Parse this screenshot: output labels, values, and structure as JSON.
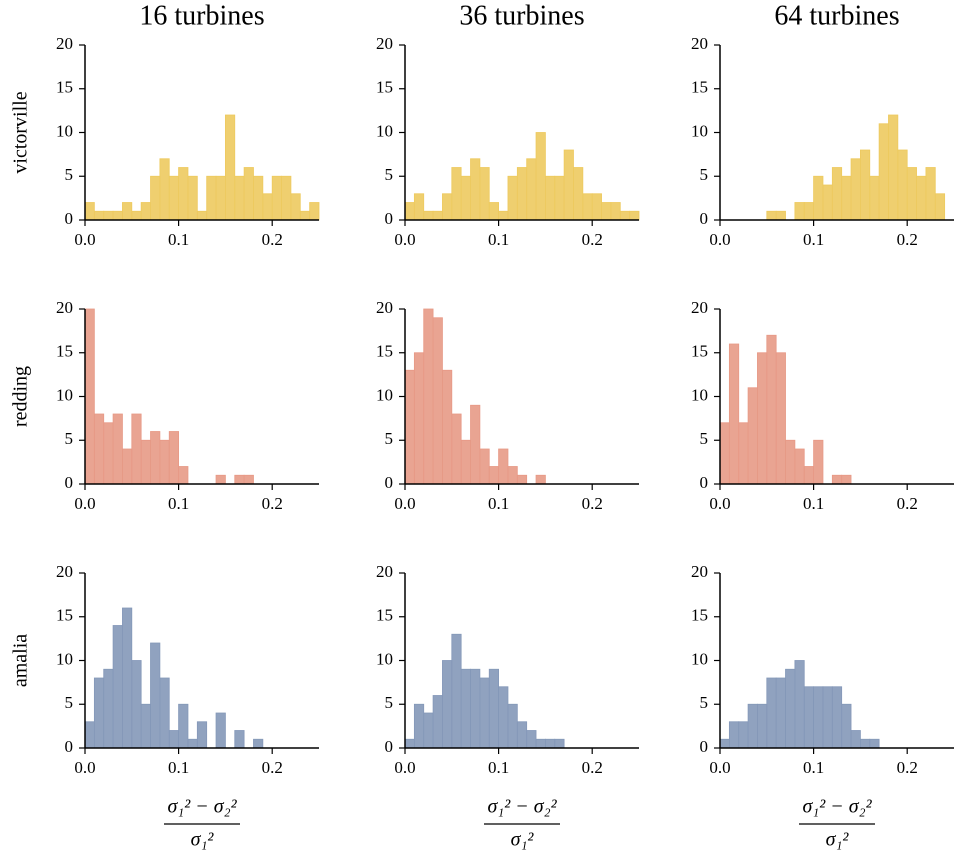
{
  "chart_data": [
    {
      "type": "histogram",
      "title": "16 turbines",
      "ylabel": "victorville",
      "color": "#ffd966",
      "bins": [
        0,
        0.01,
        0.02,
        0.03,
        0.04,
        0.05,
        0.06,
        0.07,
        0.08,
        0.09,
        0.1,
        0.11,
        0.12,
        0.13,
        0.14,
        0.15,
        0.16,
        0.17,
        0.18,
        0.19,
        0.2,
        0.21,
        0.22,
        0.23,
        0.24,
        0.25
      ],
      "values": [
        2,
        1,
        1,
        1,
        2,
        1,
        2,
        5,
        7,
        5,
        6,
        5,
        1,
        5,
        5,
        12,
        5,
        6,
        5,
        3,
        5,
        5,
        3,
        1,
        2
      ],
      "xlim": [
        0,
        0.25
      ],
      "ylim": [
        0,
        20
      ],
      "xticks": [
        {
          "value": 0,
          "label": "0.0"
        },
        0.1,
        0.2
      ],
      "yticks": [
        0,
        5,
        10,
        15,
        20
      ]
    },
    {
      "type": "histogram",
      "title": "36 turbines",
      "color": "#ffd966",
      "bins": [
        0,
        0.01,
        0.02,
        0.03,
        0.04,
        0.05,
        0.06,
        0.07,
        0.08,
        0.09,
        0.1,
        0.11,
        0.12,
        0.13,
        0.14,
        0.15,
        0.16,
        0.17,
        0.18,
        0.19,
        0.2,
        0.21,
        0.22,
        0.23,
        0.24,
        0.25
      ],
      "values": [
        2,
        3,
        1,
        1,
        3,
        6,
        5,
        7,
        6,
        2,
        1,
        5,
        6,
        7,
        10,
        5,
        5,
        8,
        6,
        3,
        3,
        2,
        2,
        1,
        1
      ],
      "xlim": [
        0,
        0.25
      ],
      "ylim": [
        0,
        20
      ],
      "xticks": [
        {
          "value": 0,
          "label": "0.0"
        },
        0.1,
        0.2
      ],
      "yticks": [
        0,
        5,
        10,
        15,
        20
      ]
    },
    {
      "type": "histogram",
      "title": "64 turbines",
      "color": "#ffd966",
      "bins": [
        0,
        0.01,
        0.02,
        0.03,
        0.04,
        0.05,
        0.06,
        0.07,
        0.08,
        0.09,
        0.1,
        0.11,
        0.12,
        0.13,
        0.14,
        0.15,
        0.16,
        0.17,
        0.18,
        0.19,
        0.2,
        0.21,
        0.22,
        0.23,
        0.24,
        0.25
      ],
      "values": [
        0,
        0,
        0,
        0,
        0,
        1,
        1,
        0,
        2,
        2,
        5,
        4,
        6,
        5,
        7,
        8,
        5,
        11,
        12,
        8,
        6,
        5,
        6,
        3,
        0
      ],
      "xlim": [
        0,
        0.25
      ],
      "ylim": [
        0,
        20
      ],
      "xticks": [
        {
          "value": 0,
          "label": "0.0"
        },
        0.1,
        0.2
      ],
      "yticks": [
        0,
        5,
        10,
        15,
        20
      ]
    },
    {
      "type": "histogram",
      "ylabel": "redding",
      "color": "#f8a590",
      "bins": [
        0,
        0.01,
        0.02,
        0.03,
        0.04,
        0.05,
        0.06,
        0.07,
        0.08,
        0.09,
        0.1,
        0.11,
        0.12,
        0.13,
        0.14,
        0.15,
        0.16,
        0.17,
        0.18,
        0.19,
        0.2,
        0.21,
        0.22,
        0.23,
        0.24,
        0.25
      ],
      "values": [
        20,
        8,
        7,
        8,
        4,
        8,
        5,
        6,
        5,
        6,
        2,
        0,
        0,
        0,
        1,
        0,
        1,
        1,
        0,
        0,
        0,
        0,
        0,
        0,
        0
      ],
      "xlim": [
        0,
        0.25
      ],
      "ylim": [
        0,
        20
      ],
      "xticks": [
        {
          "value": 0,
          "label": "0.0"
        },
        0.1,
        0.2
      ],
      "yticks": [
        0,
        5,
        10,
        15,
        20
      ]
    },
    {
      "type": "histogram",
      "color": "#f8a590",
      "bins": [
        0,
        0.01,
        0.02,
        0.03,
        0.04,
        0.05,
        0.06,
        0.07,
        0.08,
        0.09,
        0.1,
        0.11,
        0.12,
        0.13,
        0.14,
        0.15,
        0.16,
        0.17,
        0.18,
        0.19,
        0.2,
        0.21,
        0.22,
        0.23,
        0.24,
        0.25
      ],
      "values": [
        13,
        15,
        20,
        19,
        13,
        8,
        5,
        9,
        4,
        2,
        4,
        2,
        1,
        0,
        1,
        0,
        0,
        0,
        0,
        0,
        0,
        0,
        0,
        0,
        0
      ],
      "xlim": [
        0,
        0.25
      ],
      "ylim": [
        0,
        20
      ],
      "xticks": [
        {
          "value": 0,
          "label": "0.0"
        },
        0.1,
        0.2
      ],
      "yticks": [
        0,
        5,
        10,
        15,
        20
      ]
    },
    {
      "type": "histogram",
      "color": "#f8a590",
      "bins": [
        0,
        0.01,
        0.02,
        0.03,
        0.04,
        0.05,
        0.06,
        0.07,
        0.08,
        0.09,
        0.1,
        0.11,
        0.12,
        0.13,
        0.14,
        0.15,
        0.16,
        0.17,
        0.18,
        0.19,
        0.2,
        0.21,
        0.22,
        0.23,
        0.24,
        0.25
      ],
      "values": [
        7,
        16,
        7,
        11,
        15,
        17,
        15,
        5,
        4,
        2,
        5,
        0,
        1,
        1,
        0,
        0,
        0,
        0,
        0,
        0,
        0,
        0,
        0,
        0,
        0
      ],
      "xlim": [
        0,
        0.25
      ],
      "ylim": [
        0,
        20
      ],
      "xticks": [
        {
          "value": 0,
          "label": "0.0"
        },
        0.1,
        0.2
      ],
      "yticks": [
        0,
        5,
        10,
        15,
        20
      ]
    },
    {
      "type": "histogram",
      "ylabel": "amalia",
      "color": "#8ea3c6",
      "xlabel": {
        "numerator": "σ₁² − σ₂²",
        "denominator": "σ₁²"
      },
      "bins": [
        0,
        0.01,
        0.02,
        0.03,
        0.04,
        0.05,
        0.06,
        0.07,
        0.08,
        0.09,
        0.1,
        0.11,
        0.12,
        0.13,
        0.14,
        0.15,
        0.16,
        0.17,
        0.18,
        0.19,
        0.2,
        0.21,
        0.22,
        0.23,
        0.24,
        0.25
      ],
      "values": [
        3,
        8,
        9,
        14,
        16,
        10,
        5,
        12,
        8,
        2,
        5,
        1,
        3,
        0,
        4,
        0,
        2,
        0,
        1,
        0,
        0,
        0,
        0,
        0,
        0
      ],
      "xlim": [
        0,
        0.25
      ],
      "ylim": [
        0,
        20
      ],
      "xticks": [
        {
          "value": 0,
          "label": "0.0"
        },
        0.1,
        0.2
      ],
      "yticks": [
        0,
        5,
        10,
        15,
        20
      ]
    },
    {
      "type": "histogram",
      "color": "#8ea3c6",
      "xlabel": {
        "numerator": "σ₁² − σ₂²",
        "denominator": "σ₁²"
      },
      "bins": [
        0,
        0.01,
        0.02,
        0.03,
        0.04,
        0.05,
        0.06,
        0.07,
        0.08,
        0.09,
        0.1,
        0.11,
        0.12,
        0.13,
        0.14,
        0.15,
        0.16,
        0.17,
        0.18,
        0.19,
        0.2,
        0.21,
        0.22,
        0.23,
        0.24,
        0.25
      ],
      "values": [
        1,
        5,
        4,
        6,
        10,
        13,
        9,
        9,
        8,
        9,
        7,
        5,
        3,
        2,
        1,
        1,
        1,
        0,
        0,
        0,
        0,
        0,
        0,
        0,
        0
      ],
      "xlim": [
        0,
        0.25
      ],
      "ylim": [
        0,
        20
      ],
      "xticks": [
        {
          "value": 0,
          "label": "0.0"
        },
        0.1,
        0.2
      ],
      "yticks": [
        0,
        5,
        10,
        15,
        20
      ]
    },
    {
      "type": "histogram",
      "color": "#8ea3c6",
      "xlabel": {
        "numerator": "σ₁² − σ₂²",
        "denominator": "σ₁²"
      },
      "bins": [
        0,
        0.01,
        0.02,
        0.03,
        0.04,
        0.05,
        0.06,
        0.07,
        0.08,
        0.09,
        0.1,
        0.11,
        0.12,
        0.13,
        0.14,
        0.15,
        0.16,
        0.17,
        0.18,
        0.19,
        0.2,
        0.21,
        0.22,
        0.23,
        0.24,
        0.25
      ],
      "values": [
        1,
        3,
        3,
        5,
        5,
        8,
        8,
        9,
        10,
        7,
        7,
        7,
        7,
        5,
        2,
        1,
        1,
        0,
        0,
        0,
        0,
        0,
        0,
        0,
        0
      ],
      "xlim": [
        0,
        0.25
      ],
      "ylim": [
        0,
        20
      ],
      "xticks": [
        {
          "value": 0,
          "label": "0.0"
        },
        0.1,
        0.2
      ],
      "yticks": [
        0,
        5,
        10,
        15,
        20
      ]
    }
  ]
}
